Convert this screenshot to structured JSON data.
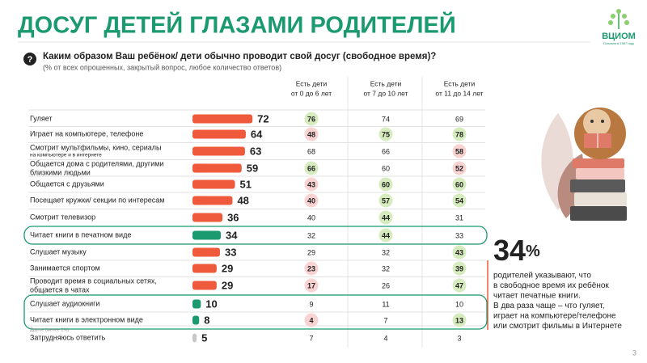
{
  "chart_data": {
    "type": "bar",
    "title": "ДОСУГ ДЕТЕЙ ГЛАЗАМИ РОДИТЕЛЕЙ",
    "logo": "ВЦИОМ",
    "logo_subtitle": "Основан в 1987 году",
    "question": "Каким образом Ваш ребёнок/ дети обычно проводит свой досуг (свободное время)?",
    "subtitle": "(% от всех опрошенных, закрытый вопрос, любое количество ответов)",
    "categories": [
      [
        "Гуляет"
      ],
      [
        "Играет на компьютере, телефоне"
      ],
      [
        "Смотрит мультфильмы, кино, сериалы"
      ],
      [
        "Общается дома с родителями, другими",
        "близкими людьми"
      ],
      [
        "Общается с друзьями"
      ],
      [
        "Посещает кружки/ секции по интересам"
      ],
      [
        "Смотрит телевизор"
      ],
      [
        "Читает книги в печатном виде"
      ],
      [
        "Слушает музыку"
      ],
      [
        "Занимается спортом"
      ],
      [
        "Проводит время в социальных сетях,",
        "общается в чатах"
      ],
      [
        "Слушает аудиокниги"
      ],
      [
        "Читает книги в электронном виде"
      ],
      [
        "Затрудняюсь ответить"
      ]
    ],
    "category_notes": {
      "2": "на компьютере и в интернете"
    },
    "other_note": "Другое (менее 1%)",
    "values": [
      72,
      64,
      63,
      59,
      51,
      48,
      36,
      34,
      33,
      29,
      29,
      10,
      8,
      5
    ],
    "colors": [
      "#f05a3c",
      "#f05a3c",
      "#f05a3c",
      "#f05a3c",
      "#f05a3c",
      "#f05a3c",
      "#f05a3c",
      "#1a9a6e",
      "#f05a3c",
      "#f05a3c",
      "#f05a3c",
      "#1a9a6e",
      "#1a9a6e",
      "#c8c8c8"
    ],
    "table": {
      "headers": [
        [
          "Есть дети",
          "от 0 до 6 лет"
        ],
        [
          "Есть дети",
          "от 7 до 10 лет"
        ],
        [
          "Есть дети",
          "от 11 до 14 лет"
        ]
      ],
      "columns": [
        [
          76,
          48,
          68,
          66,
          43,
          40,
          40,
          32,
          29,
          23,
          17,
          9,
          4,
          7
        ],
        [
          74,
          75,
          66,
          60,
          60,
          57,
          44,
          44,
          32,
          32,
          26,
          11,
          7,
          4
        ],
        [
          69,
          78,
          58,
          52,
          60,
          54,
          31,
          33,
          43,
          39,
          47,
          10,
          13,
          3
        ]
      ],
      "highlights": [
        [
          "g",
          "p",
          null,
          "g",
          "p",
          "p",
          null,
          null,
          null,
          "p",
          "p",
          null,
          "p",
          null
        ],
        [
          null,
          "g",
          null,
          null,
          "g",
          "g",
          "g",
          "g",
          null,
          null,
          null,
          null,
          null,
          null
        ],
        [
          null,
          "g",
          "p",
          "p",
          "g",
          "g",
          null,
          null,
          "g",
          "g",
          "g",
          null,
          "g",
          null
        ]
      ],
      "highlight_colors": {
        "g": "#d6ecbf",
        "p": "#f9d2d2"
      }
    },
    "framed_rows": [
      [
        7
      ],
      [
        11,
        12
      ]
    ],
    "frame_color": "#1a9a6e",
    "callout": {
      "number": "34",
      "unit": "%",
      "lines": [
        "родителей указывают, что",
        "в свободное время их ребёнок",
        "читает печатные книги.",
        "В два раза чаще – что гуляет,",
        "играет на компьютере/телефоне",
        "или смотрит фильмы в Интернете"
      ]
    },
    "page_number": "3"
  }
}
